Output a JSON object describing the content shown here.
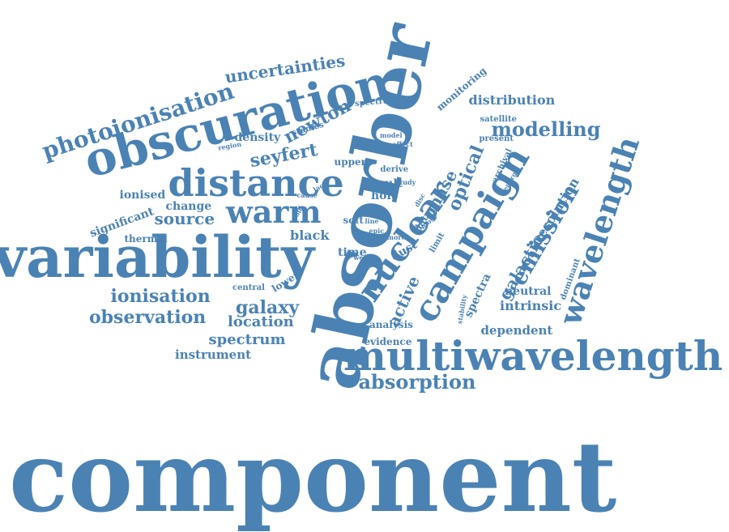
{
  "color": "#4a82b4",
  "words": [
    "component",
    "absorber",
    "variability",
    "obscuration",
    "multiwavelength",
    "campaign",
    "nuclear",
    "distance",
    "wavelength",
    "warm",
    "photoionisation",
    "emission",
    "optical",
    "absorption",
    "phase",
    "observation",
    "ionisation",
    "modelling",
    "galaxy",
    "seyfert",
    "spectrum",
    "location",
    "newton",
    "galactic",
    "uncertainties",
    "active",
    "resolution",
    "distribution",
    "source",
    "intrinsic",
    "instrument",
    "dependent",
    "spectra",
    "neutral",
    "black",
    "density",
    "ionised",
    "significant",
    "change",
    "result",
    "hole",
    "upper",
    "time",
    "dust",
    "evidence",
    "analysis",
    "thermal",
    "central",
    "lower",
    "dominant",
    "monitoring",
    "spectral",
    "satellite",
    "studies",
    "present",
    "soft",
    "data",
    "limit",
    "archival",
    "derive",
    "study",
    "region",
    "model",
    "effect",
    "energy",
    "week",
    "more",
    "epic",
    "line",
    "disc",
    "most",
    "cause",
    "lack",
    "cold",
    "stability"
  ]
}
